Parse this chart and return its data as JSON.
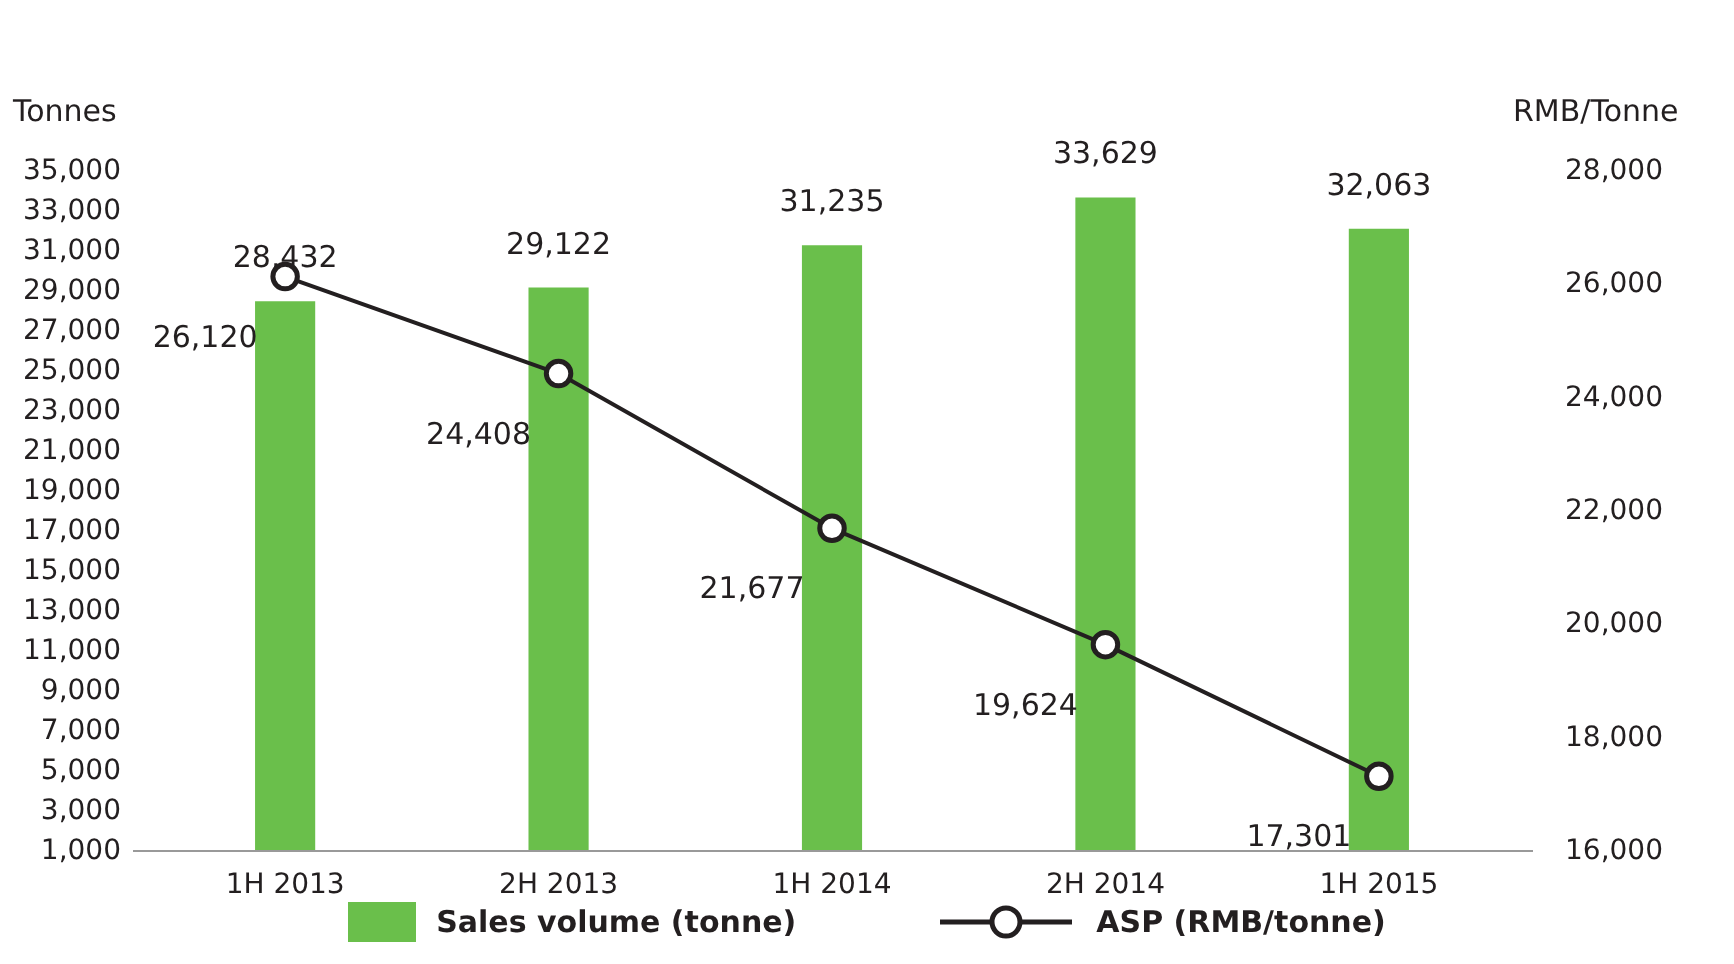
{
  "chart_data": {
    "type": "bar",
    "ylabel": "Tonnes",
    "y2label": "RMB/Tonne",
    "categories": [
      "1H 2013",
      "2H 2013",
      "1H 2014",
      "2H 2014",
      "1H 2015"
    ],
    "series": [
      {
        "name": "Sales volume (tonne)",
        "color": "#6abf4b",
        "values": [
          28432,
          29122,
          31235,
          33629,
          32063
        ],
        "value_labels": [
          "28,432",
          "29,122",
          "31,235",
          "33,629",
          "32,063"
        ]
      },
      {
        "name": "ASP (RMB/tonne)",
        "type": "line",
        "axis": "y2",
        "color": "#231f20",
        "values": [
          26120,
          24408,
          21677,
          19624,
          17301
        ],
        "value_labels": [
          "26,120",
          "24,408",
          "21,677",
          "19,624",
          "17,301"
        ]
      }
    ],
    "ylim": [
      1000,
      35000
    ],
    "yticks": [
      {
        "value": 1000,
        "label": "1,000"
      },
      {
        "value": 3000,
        "label": "3,000"
      },
      {
        "value": 5000,
        "label": "5,000"
      },
      {
        "value": 7000,
        "label": "7,000"
      },
      {
        "value": 9000,
        "label": "9,000"
      },
      {
        "value": 11000,
        "label": "11,000"
      },
      {
        "value": 13000,
        "label": "13,000"
      },
      {
        "value": 15000,
        "label": "15,000"
      },
      {
        "value": 17000,
        "label": "17,000"
      },
      {
        "value": 19000,
        "label": "19,000"
      },
      {
        "value": 21000,
        "label": "21,000"
      },
      {
        "value": 23000,
        "label": "23,000"
      },
      {
        "value": 25000,
        "label": "25,000"
      },
      {
        "value": 27000,
        "label": "27,000"
      },
      {
        "value": 29000,
        "label": "29,000"
      },
      {
        "value": 31000,
        "label": "31,000"
      },
      {
        "value": 33000,
        "label": "33,000"
      },
      {
        "value": 35000,
        "label": "35,000"
      }
    ],
    "y2lim": [
      16000,
      28000
    ],
    "y2ticks": [
      {
        "value": 16000,
        "label": "16,000"
      },
      {
        "value": 18000,
        "label": "18,000"
      },
      {
        "value": 20000,
        "label": "20,000"
      },
      {
        "value": 22000,
        "label": "22,000"
      },
      {
        "value": 24000,
        "label": "24,000"
      },
      {
        "value": 26000,
        "label": "26,000"
      },
      {
        "value": 28000,
        "label": "28,000"
      }
    ],
    "legend": "bottom",
    "marker": "circle",
    "line_style": "solid"
  }
}
